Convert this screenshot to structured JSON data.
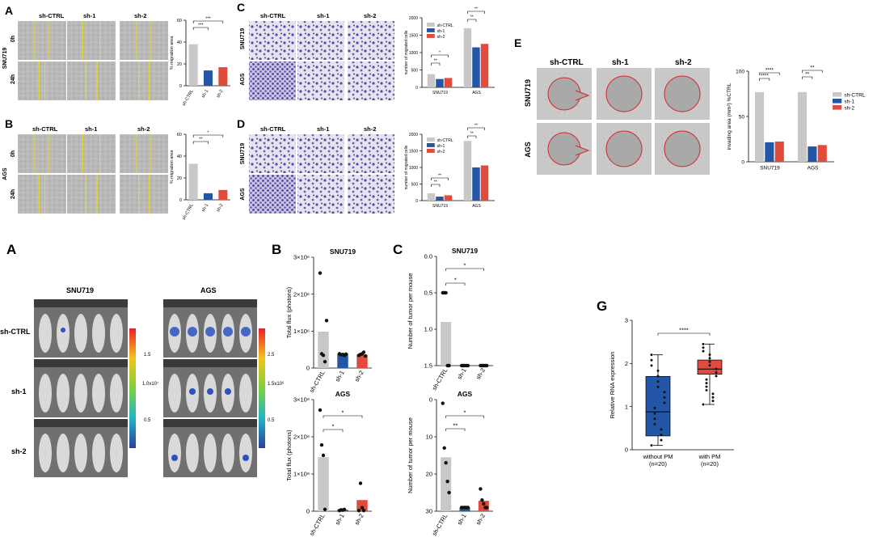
{
  "panel_letters": {
    "top_A": "A",
    "top_B": "B",
    "top_C": "C",
    "top_D": "D",
    "top_E": "E",
    "bot_A": "A",
    "bot_B": "B",
    "bot_C": "C",
    "bot_G": "G"
  },
  "groups": [
    "sh-CTRL",
    "sh-1",
    "sh-2"
  ],
  "cells": {
    "snu": "SNU719",
    "ags": "AGS"
  },
  "time": {
    "t0": "0h",
    "t24": "24h"
  },
  "colors": {
    "ctrl": "#c8c8c8",
    "sh1": "#2356a6",
    "sh2": "#e04b3c",
    "outline": "#d6282d",
    "stain": "#5a4aa3"
  },
  "mice": {
    "col_snu": "SNU719",
    "col_ags": "AGS",
    "rows": [
      "sh-CTRL",
      "sh-1",
      "sh-2"
    ],
    "scale_snu": [
      "1.5",
      "1.0x10⁷",
      "0.5"
    ],
    "scale_ags": [
      "2.5",
      "1.5x10⁶",
      "0.5"
    ]
  },
  "chart_data": [
    {
      "id": "A",
      "type": "bar",
      "title": "",
      "ylabel": "% migration area",
      "categories": [
        "sh-CTRL",
        "sh-1",
        "sh-2"
      ],
      "values": [
        38,
        14,
        17
      ],
      "ylim": [
        0,
        60
      ],
      "sig": [
        "***",
        "***"
      ]
    },
    {
      "id": "B",
      "type": "bar",
      "title": "",
      "ylabel": "% migration area",
      "categories": [
        "sh-CTRL",
        "sh-1",
        "sh-2"
      ],
      "values": [
        33,
        6,
        9
      ],
      "ylim": [
        0,
        60
      ],
      "sig": [
        "**",
        "*"
      ]
    },
    {
      "id": "C",
      "type": "bar",
      "ylabel": "number of migrated cells",
      "categories": [
        "SNU719",
        "AGS"
      ],
      "yticks": [
        "0",
        "500",
        "1000",
        "1500",
        "2000"
      ],
      "ylim": [
        0,
        2000
      ],
      "series": [
        {
          "name": "sh-CTRL",
          "values": [
            380,
            1700
          ]
        },
        {
          "name": "sh-1",
          "values": [
            240,
            1150
          ]
        },
        {
          "name": "sh-2",
          "values": [
            270,
            1250
          ]
        }
      ],
      "sig": [
        "**",
        "*",
        "**",
        "**"
      ]
    },
    {
      "id": "D",
      "type": "bar",
      "ylabel": "number of migrated cells",
      "categories": [
        "SNU719",
        "AGS"
      ],
      "yticks": [
        "0",
        "500",
        "1000",
        "1500",
        "2000"
      ],
      "ylim": [
        0,
        2000
      ],
      "series": [
        {
          "name": "sh-CTRL",
          "values": [
            220,
            1800
          ]
        },
        {
          "name": "sh-1",
          "values": [
            120,
            1000
          ]
        },
        {
          "name": "sh-2",
          "values": [
            160,
            1060
          ]
        }
      ],
      "sig": [
        "**",
        "**",
        "**",
        "**"
      ]
    },
    {
      "id": "E",
      "type": "bar",
      "ylabel": "invading area (mm²) %CTRL",
      "categories": [
        "SNU719",
        "AGS"
      ],
      "yticks": [
        "0",
        "50",
        "100"
      ],
      "ylim": [
        0,
        130
      ],
      "series": [
        {
          "name": "sh-CTRL",
          "values": [
            100,
            100
          ]
        },
        {
          "name": "sh-1",
          "values": [
            28,
            22
          ]
        },
        {
          "name": "sh-2",
          "values": [
            29,
            24
          ]
        }
      ],
      "sig": [
        "****",
        "****",
        "**",
        "**"
      ]
    },
    {
      "id": "B_SNU719",
      "type": "bar",
      "title": "SNU719",
      "ylabel": "Total flux (photons)",
      "categories": [
        "sh-CTRL",
        "sh-1",
        "sh-2"
      ],
      "yticks": [
        "3×10⁶",
        "2×10⁶",
        "1×10⁶",
        "0"
      ],
      "values": [
        1.15,
        0.45,
        0.42
      ],
      "ylim": [
        0,
        3.5
      ]
    },
    {
      "id": "B_AGS",
      "type": "bar",
      "title": "AGS",
      "ylabel": "Total flux (photons)",
      "categories": [
        "sh-CTRL",
        "sh-1",
        "sh-2"
      ],
      "yticks": [
        "3×10⁸",
        "2×10⁸",
        "1×10⁸",
        "0"
      ],
      "values": [
        1.55,
        0.04,
        0.32
      ],
      "ylim": [
        0,
        3.2
      ],
      "sig": [
        "*",
        "*"
      ]
    },
    {
      "id": "C_SNU719",
      "type": "bar",
      "title": "SNU719",
      "ylabel": "Number of tumor per mouse",
      "categories": [
        "sh-CTRL",
        "sh-1",
        "sh-2"
      ],
      "yticks": [
        "0.0",
        "0.5",
        "1.0",
        "1.5"
      ],
      "values": [
        0.6,
        0,
        0
      ],
      "ylim": [
        0,
        1.5
      ],
      "sig": [
        "*",
        "*"
      ]
    },
    {
      "id": "C_AGS",
      "type": "bar",
      "title": "AGS",
      "ylabel": "Number of tumor per mouse",
      "categories": [
        "sh-CTRL",
        "sh-1",
        "sh-2"
      ],
      "yticks": [
        "0",
        "10",
        "20",
        "30"
      ],
      "values": [
        14.5,
        1,
        2.8
      ],
      "ylim": [
        0,
        30
      ],
      "sig": [
        "**",
        "*"
      ]
    },
    {
      "id": "G",
      "type": "box",
      "ylabel": "Relative RNA expression",
      "categories": [
        "without PM\n(n=20)",
        "with PM\n(n=20)"
      ],
      "yticks": [
        "0",
        "1",
        "2",
        "3"
      ],
      "ylim": [
        0,
        3
      ],
      "boxes": [
        {
          "min": 0.1,
          "q1": 0.32,
          "median": 0.88,
          "q3": 1.7,
          "max": 2.2
        },
        {
          "min": 1.05,
          "q1": 1.75,
          "median": 1.87,
          "q3": 2.08,
          "max": 2.45
        }
      ],
      "sig": [
        "****"
      ]
    }
  ]
}
